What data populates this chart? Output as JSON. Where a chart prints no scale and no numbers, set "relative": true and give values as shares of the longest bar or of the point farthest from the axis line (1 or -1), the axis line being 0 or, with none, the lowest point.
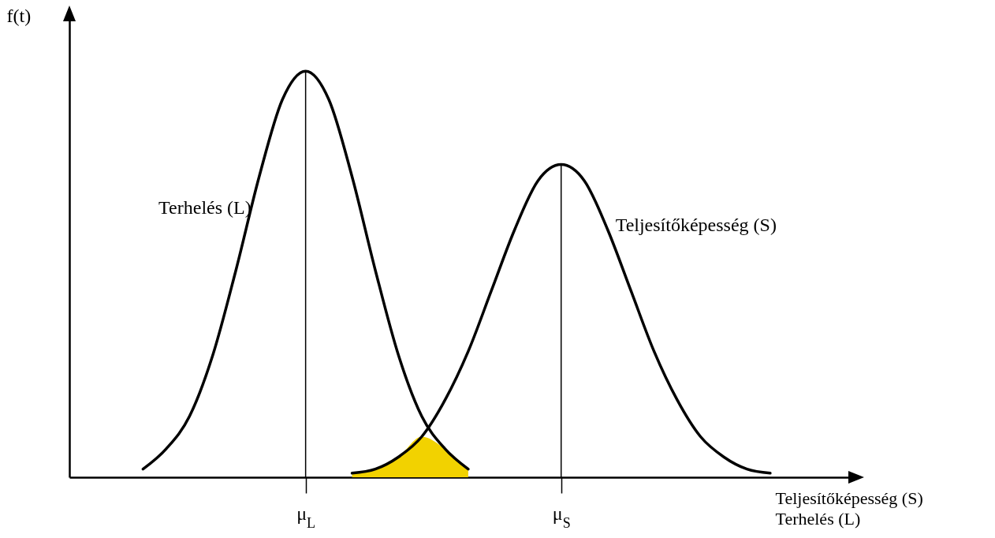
{
  "chart_data": {
    "type": "line",
    "relative": true,
    "ylabel": "f(t)",
    "xlabel": "Teljesítőképesség (S)\nTerhelés (L)",
    "categories": [
      null,
      null,
      null,
      null,
      null,
      null,
      null,
      null,
      null,
      null,
      "μ$_{L}$",
      null,
      null,
      null,
      null,
      null,
      null,
      null,
      null,
      null,
      null,
      "μ$_{S}$",
      null,
      null,
      null,
      null,
      null,
      null,
      null,
      null,
      null,
      null,
      null,
      null
    ],
    "series": [
      {
        "type": "area",
        "color": "#f2d200",
        "values": [
          null,
          null,
          null,
          null,
          null,
          null,
          null,
          null,
          null,
          null,
          null,
          null,
          0.01,
          0.02,
          0.05,
          0.1,
          0.07,
          0.02,
          null,
          null,
          null,
          null,
          null,
          null,
          null,
          null,
          null,
          null,
          null,
          null,
          null,
          null,
          null,
          null
        ]
      },
      {
        "name": "Terhelés (L)",
        "color": "#000000",
        "values": [
          null,
          null,
          null,
          0.02,
          0.07,
          0.15,
          0.3,
          0.51,
          0.74,
          0.93,
          1,
          0.93,
          0.74,
          0.51,
          0.3,
          0.15,
          0.07,
          0.02,
          null,
          null,
          null,
          null,
          null,
          null,
          null,
          null,
          null,
          null,
          null,
          null,
          null,
          null,
          null,
          null
        ]
      },
      {
        "name": "Teljesítőképesség (S)",
        "color": "#000000",
        "values": [
          null,
          null,
          null,
          null,
          null,
          null,
          null,
          null,
          null,
          null,
          null,
          null,
          0.01,
          0.02,
          0.05,
          0.1,
          0.19,
          0.31,
          0.46,
          0.61,
          0.73,
          0.77,
          0.73,
          0.61,
          0.46,
          0.31,
          0.19,
          0.1,
          0.05,
          0.02,
          0.01,
          null,
          null,
          null
        ]
      },
      {
        "type": "bar",
        "color": "#000000",
        "values": [
          null,
          null,
          null,
          null,
          null,
          null,
          null,
          null,
          null,
          null,
          1,
          null,
          null,
          null,
          null,
          null,
          null,
          null,
          null,
          null,
          null,
          0.77,
          null,
          null,
          null,
          null,
          null,
          null,
          null,
          null,
          null,
          null,
          null,
          null
        ]
      }
    ]
  }
}
